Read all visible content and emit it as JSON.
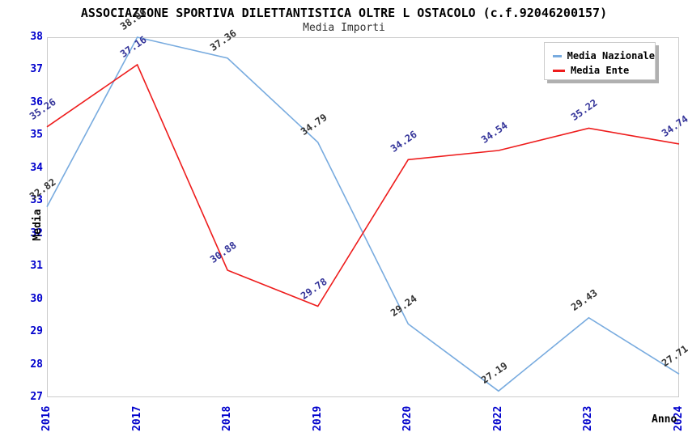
{
  "chart_data": {
    "type": "line",
    "title": "ASSOCIAZIONE SPORTIVA DILETTANTISTICA OLTRE L OSTACOLO (c.f.92046200157)",
    "subtitle": "Media Importi",
    "xlabel": "Anno",
    "ylabel": "Media",
    "categories": [
      "2016",
      "2017",
      "2018",
      "2019",
      "2020",
      "2022",
      "2023",
      "2024"
    ],
    "series": [
      {
        "name": "Media Nazionale",
        "color": "#78abdf",
        "label_color": "#333333",
        "values": [
          32.82,
          38.0,
          37.36,
          34.79,
          29.24,
          27.19,
          29.43,
          27.71
        ]
      },
      {
        "name": "Media Ente",
        "color": "#ee1c1c",
        "label_color": "#333399",
        "values": [
          35.26,
          37.16,
          30.88,
          29.78,
          34.26,
          34.54,
          35.22,
          34.74
        ]
      }
    ],
    "ylim": [
      27,
      38
    ],
    "ytick_step": 1,
    "grid": true,
    "alternating_bands": true,
    "legend_position": "top-right",
    "colors": {
      "tick_label": "#0000cc",
      "band": "#f2f2f2",
      "gridline": "#dddddd",
      "plot_border": "#cccccc",
      "title": "#000000",
      "subtitle": "#333333"
    }
  }
}
